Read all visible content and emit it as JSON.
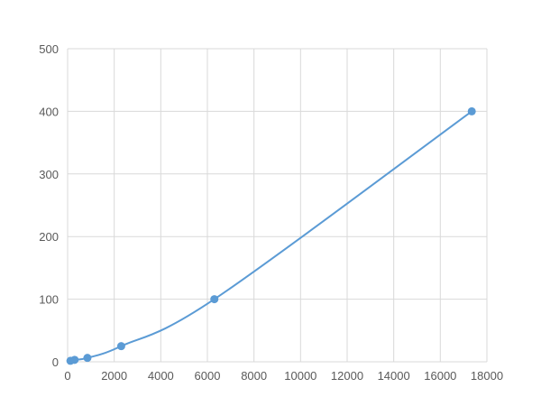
{
  "chart_data": {
    "type": "scatter",
    "title": "",
    "xlabel": "",
    "ylabel": "",
    "xlim": [
      0,
      18000
    ],
    "ylim": [
      0,
      500
    ],
    "x_ticks": [
      "0",
      "2000",
      "4000",
      "6000",
      "8000",
      "10000",
      "12000",
      "14000",
      "16000",
      "18000"
    ],
    "y_ticks": [
      "0",
      "100",
      "200",
      "300",
      "400",
      "500"
    ],
    "grid": true,
    "legend": "none",
    "color": "#5b9bd5",
    "smoothed_line": true,
    "series": [
      {
        "x": [
          120,
          300,
          850,
          2300,
          6300,
          17350
        ],
        "y": [
          1.56,
          3.13,
          6.25,
          25,
          100,
          400
        ]
      }
    ]
  }
}
